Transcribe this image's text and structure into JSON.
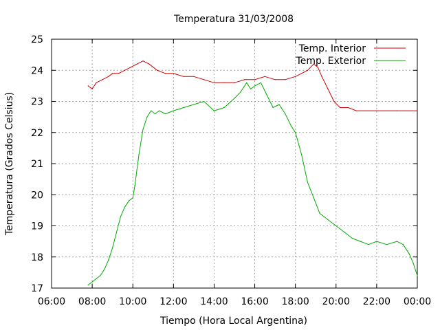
{
  "chart_data": {
    "type": "line",
    "title": "Temperatura 31/03/2008",
    "xlabel": "Tiempo (Hora Local Argentina)",
    "ylabel": "Temperatura (Grados Celsius)",
    "xlim": [
      6,
      24
    ],
    "ylim": [
      17,
      25
    ],
    "x_ticks": [
      6,
      8,
      10,
      12,
      14,
      16,
      18,
      20,
      22,
      24
    ],
    "x_tick_labels": [
      "06:00",
      "08:00",
      "10:00",
      "12:00",
      "14:00",
      "16:00",
      "18:00",
      "20:00",
      "22:00",
      "00:00"
    ],
    "y_ticks": [
      17,
      18,
      19,
      20,
      21,
      22,
      23,
      24,
      25
    ],
    "y_tick_labels": [
      "17",
      "18",
      "19",
      "20",
      "21",
      "22",
      "23",
      "24",
      "25"
    ],
    "grid": true,
    "legend_position": "top-right",
    "series": [
      {
        "name": "Temp. Interior",
        "color": "#cc0000",
        "x": [
          7.8,
          8.0,
          8.2,
          8.5,
          8.8,
          9.0,
          9.3,
          9.6,
          9.9,
          10.2,
          10.5,
          10.8,
          11.2,
          11.6,
          12.0,
          12.5,
          13.0,
          13.5,
          14.0,
          14.5,
          15.0,
          15.5,
          16.0,
          16.5,
          17.0,
          17.5,
          18.0,
          18.3,
          18.6,
          18.9,
          19.1,
          19.3,
          19.6,
          19.9,
          20.2,
          20.6,
          21.0,
          22.0,
          23.0,
          24.0
        ],
        "y": [
          23.5,
          23.4,
          23.6,
          23.7,
          23.8,
          23.9,
          23.9,
          24.0,
          24.1,
          24.2,
          24.3,
          24.2,
          24.0,
          23.9,
          23.9,
          23.8,
          23.8,
          23.7,
          23.6,
          23.6,
          23.6,
          23.7,
          23.7,
          23.8,
          23.7,
          23.7,
          23.8,
          23.9,
          24.0,
          24.2,
          24.1,
          23.8,
          23.4,
          23.0,
          22.8,
          22.8,
          22.7,
          22.7,
          22.7,
          22.7
        ]
      },
      {
        "name": "Temp. Exterior",
        "color": "#00aa00",
        "x": [
          7.8,
          8.0,
          8.2,
          8.4,
          8.6,
          8.8,
          9.0,
          9.2,
          9.4,
          9.6,
          9.8,
          10.0,
          10.1,
          10.3,
          10.5,
          10.7,
          10.9,
          11.1,
          11.3,
          11.6,
          12.0,
          12.5,
          13.0,
          13.5,
          14.0,
          14.5,
          15.0,
          15.3,
          15.6,
          15.8,
          16.0,
          16.3,
          16.6,
          16.9,
          17.2,
          17.5,
          17.8,
          18.0,
          18.3,
          18.6,
          18.9,
          19.2,
          19.6,
          20.0,
          20.4,
          20.8,
          21.2,
          21.6,
          22.0,
          22.5,
          23.0,
          23.3,
          23.6,
          23.8,
          24.0
        ],
        "y": [
          17.1,
          17.2,
          17.3,
          17.4,
          17.6,
          17.9,
          18.3,
          18.8,
          19.3,
          19.6,
          19.8,
          19.9,
          20.3,
          21.3,
          22.1,
          22.5,
          22.7,
          22.6,
          22.7,
          22.6,
          22.7,
          22.8,
          22.9,
          23.0,
          22.7,
          22.8,
          23.1,
          23.3,
          23.6,
          23.4,
          23.5,
          23.6,
          23.2,
          22.8,
          22.9,
          22.6,
          22.2,
          22.0,
          21.3,
          20.4,
          19.9,
          19.4,
          19.2,
          19.0,
          18.8,
          18.6,
          18.5,
          18.4,
          18.5,
          18.4,
          18.5,
          18.4,
          18.1,
          17.8,
          17.4
        ]
      }
    ]
  }
}
